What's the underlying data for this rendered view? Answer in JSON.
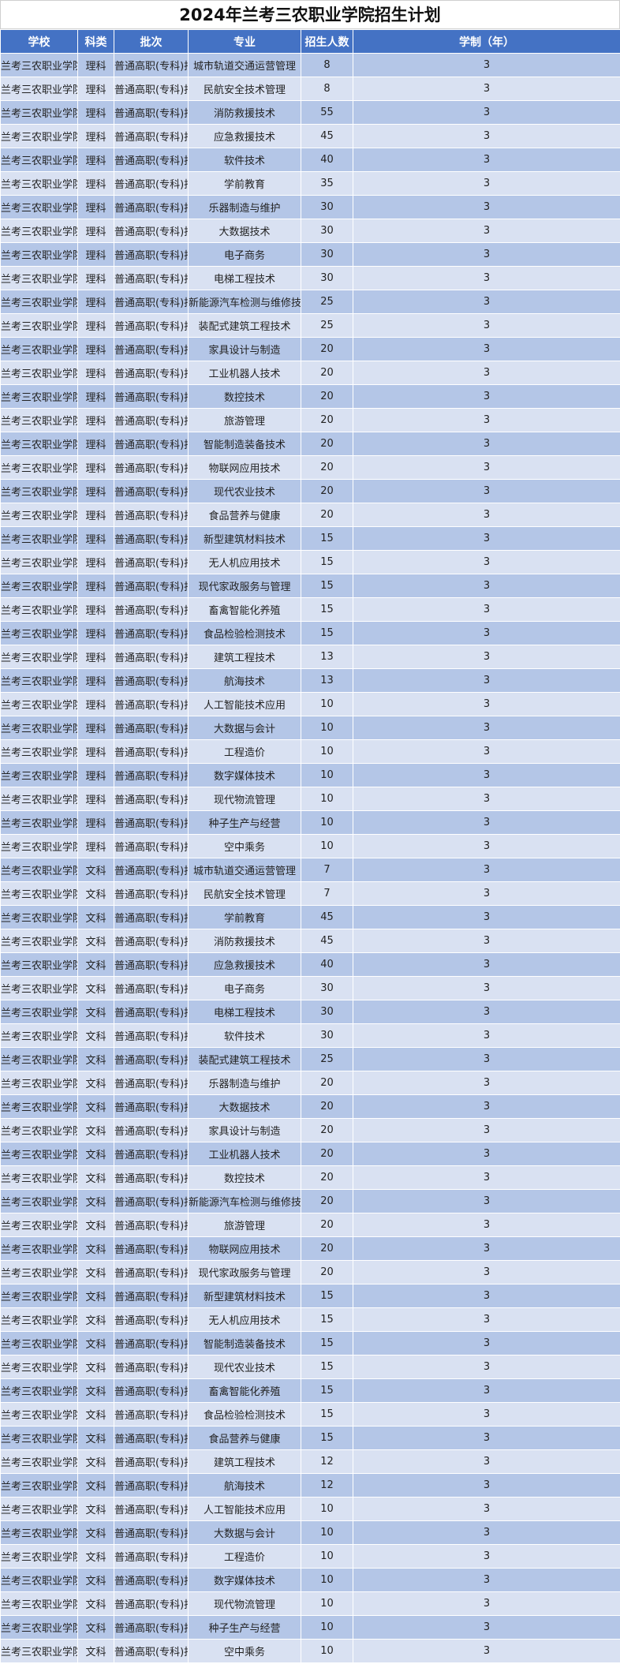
{
  "title": "2024年兰考三农职业学院招生计划",
  "colors": {
    "header_bg": "#4472C4",
    "row_odd": "#B4C6E7",
    "row_even": "#D9E1F2"
  },
  "columns": [
    "学校",
    "科类",
    "批次",
    "专业",
    "招生人数",
    "学制（年）"
  ],
  "rows": [
    [
      "兰考三农职业学院",
      "理科",
      "普通高职(专科)批",
      "城市轨道交通运营管理",
      "8",
      "3"
    ],
    [
      "兰考三农职业学院",
      "理科",
      "普通高职(专科)批",
      "民航安全技术管理",
      "8",
      "3"
    ],
    [
      "兰考三农职业学院",
      "理科",
      "普通高职(专科)批",
      "消防救援技术",
      "55",
      "3"
    ],
    [
      "兰考三农职业学院",
      "理科",
      "普通高职(专科)批",
      "应急救援技术",
      "45",
      "3"
    ],
    [
      "兰考三农职业学院",
      "理科",
      "普通高职(专科)批",
      "软件技术",
      "40",
      "3"
    ],
    [
      "兰考三农职业学院",
      "理科",
      "普通高职(专科)批",
      "学前教育",
      "35",
      "3"
    ],
    [
      "兰考三农职业学院",
      "理科",
      "普通高职(专科)批",
      "乐器制造与维护",
      "30",
      "3"
    ],
    [
      "兰考三农职业学院",
      "理科",
      "普通高职(专科)批",
      "大数据技术",
      "30",
      "3"
    ],
    [
      "兰考三农职业学院",
      "理科",
      "普通高职(专科)批",
      "电子商务",
      "30",
      "3"
    ],
    [
      "兰考三农职业学院",
      "理科",
      "普通高职(专科)批",
      "电梯工程技术",
      "30",
      "3"
    ],
    [
      "兰考三农职业学院",
      "理科",
      "普通高职(专科)批",
      "新能源汽车检测与维修技术",
      "25",
      "3"
    ],
    [
      "兰考三农职业学院",
      "理科",
      "普通高职(专科)批",
      "装配式建筑工程技术",
      "25",
      "3"
    ],
    [
      "兰考三农职业学院",
      "理科",
      "普通高职(专科)批",
      "家具设计与制造",
      "20",
      "3"
    ],
    [
      "兰考三农职业学院",
      "理科",
      "普通高职(专科)批",
      "工业机器人技术",
      "20",
      "3"
    ],
    [
      "兰考三农职业学院",
      "理科",
      "普通高职(专科)批",
      "数控技术",
      "20",
      "3"
    ],
    [
      "兰考三农职业学院",
      "理科",
      "普通高职(专科)批",
      "旅游管理",
      "20",
      "3"
    ],
    [
      "兰考三农职业学院",
      "理科",
      "普通高职(专科)批",
      "智能制造装备技术",
      "20",
      "3"
    ],
    [
      "兰考三农职业学院",
      "理科",
      "普通高职(专科)批",
      "物联网应用技术",
      "20",
      "3"
    ],
    [
      "兰考三农职业学院",
      "理科",
      "普通高职(专科)批",
      "现代农业技术",
      "20",
      "3"
    ],
    [
      "兰考三农职业学院",
      "理科",
      "普通高职(专科)批",
      "食品营养与健康",
      "20",
      "3"
    ],
    [
      "兰考三农职业学院",
      "理科",
      "普通高职(专科)批",
      "新型建筑材料技术",
      "15",
      "3"
    ],
    [
      "兰考三农职业学院",
      "理科",
      "普通高职(专科)批",
      "无人机应用技术",
      "15",
      "3"
    ],
    [
      "兰考三农职业学院",
      "理科",
      "普通高职(专科)批",
      "现代家政服务与管理",
      "15",
      "3"
    ],
    [
      "兰考三农职业学院",
      "理科",
      "普通高职(专科)批",
      "畜禽智能化养殖",
      "15",
      "3"
    ],
    [
      "兰考三农职业学院",
      "理科",
      "普通高职(专科)批",
      "食品检验检测技术",
      "15",
      "3"
    ],
    [
      "兰考三农职业学院",
      "理科",
      "普通高职(专科)批",
      "建筑工程技术",
      "13",
      "3"
    ],
    [
      "兰考三农职业学院",
      "理科",
      "普通高职(专科)批",
      "航海技术",
      "13",
      "3"
    ],
    [
      "兰考三农职业学院",
      "理科",
      "普通高职(专科)批",
      "人工智能技术应用",
      "10",
      "3"
    ],
    [
      "兰考三农职业学院",
      "理科",
      "普通高职(专科)批",
      "大数据与会计",
      "10",
      "3"
    ],
    [
      "兰考三农职业学院",
      "理科",
      "普通高职(专科)批",
      "工程造价",
      "10",
      "3"
    ],
    [
      "兰考三农职业学院",
      "理科",
      "普通高职(专科)批",
      "数字媒体技术",
      "10",
      "3"
    ],
    [
      "兰考三农职业学院",
      "理科",
      "普通高职(专科)批",
      "现代物流管理",
      "10",
      "3"
    ],
    [
      "兰考三农职业学院",
      "理科",
      "普通高职(专科)批",
      "种子生产与经营",
      "10",
      "3"
    ],
    [
      "兰考三农职业学院",
      "理科",
      "普通高职(专科)批",
      "空中乘务",
      "10",
      "3"
    ],
    [
      "兰考三农职业学院",
      "文科",
      "普通高职(专科)批",
      "城市轨道交通运营管理",
      "7",
      "3"
    ],
    [
      "兰考三农职业学院",
      "文科",
      "普通高职(专科)批",
      "民航安全技术管理",
      "7",
      "3"
    ],
    [
      "兰考三农职业学院",
      "文科",
      "普通高职(专科)批",
      "学前教育",
      "45",
      "3"
    ],
    [
      "兰考三农职业学院",
      "文科",
      "普通高职(专科)批",
      "消防救援技术",
      "45",
      "3"
    ],
    [
      "兰考三农职业学院",
      "文科",
      "普通高职(专科)批",
      "应急救援技术",
      "40",
      "3"
    ],
    [
      "兰考三农职业学院",
      "文科",
      "普通高职(专科)批",
      "电子商务",
      "30",
      "3"
    ],
    [
      "兰考三农职业学院",
      "文科",
      "普通高职(专科)批",
      "电梯工程技术",
      "30",
      "3"
    ],
    [
      "兰考三农职业学院",
      "文科",
      "普通高职(专科)批",
      "软件技术",
      "30",
      "3"
    ],
    [
      "兰考三农职业学院",
      "文科",
      "普通高职(专科)批",
      "装配式建筑工程技术",
      "25",
      "3"
    ],
    [
      "兰考三农职业学院",
      "文科",
      "普通高职(专科)批",
      "乐器制造与维护",
      "20",
      "3"
    ],
    [
      "兰考三农职业学院",
      "文科",
      "普通高职(专科)批",
      "大数据技术",
      "20",
      "3"
    ],
    [
      "兰考三农职业学院",
      "文科",
      "普通高职(专科)批",
      "家具设计与制造",
      "20",
      "3"
    ],
    [
      "兰考三农职业学院",
      "文科",
      "普通高职(专科)批",
      "工业机器人技术",
      "20",
      "3"
    ],
    [
      "兰考三农职业学院",
      "文科",
      "普通高职(专科)批",
      "数控技术",
      "20",
      "3"
    ],
    [
      "兰考三农职业学院",
      "文科",
      "普通高职(专科)批",
      "新能源汽车检测与维修技术",
      "20",
      "3"
    ],
    [
      "兰考三农职业学院",
      "文科",
      "普通高职(专科)批",
      "旅游管理",
      "20",
      "3"
    ],
    [
      "兰考三农职业学院",
      "文科",
      "普通高职(专科)批",
      "物联网应用技术",
      "20",
      "3"
    ],
    [
      "兰考三农职业学院",
      "文科",
      "普通高职(专科)批",
      "现代家政服务与管理",
      "20",
      "3"
    ],
    [
      "兰考三农职业学院",
      "文科",
      "普通高职(专科)批",
      "新型建筑材料技术",
      "15",
      "3"
    ],
    [
      "兰考三农职业学院",
      "文科",
      "普通高职(专科)批",
      "无人机应用技术",
      "15",
      "3"
    ],
    [
      "兰考三农职业学院",
      "文科",
      "普通高职(专科)批",
      "智能制造装备技术",
      "15",
      "3"
    ],
    [
      "兰考三农职业学院",
      "文科",
      "普通高职(专科)批",
      "现代农业技术",
      "15",
      "3"
    ],
    [
      "兰考三农职业学院",
      "文科",
      "普通高职(专科)批",
      "畜禽智能化养殖",
      "15",
      "3"
    ],
    [
      "兰考三农职业学院",
      "文科",
      "普通高职(专科)批",
      "食品检验检测技术",
      "15",
      "3"
    ],
    [
      "兰考三农职业学院",
      "文科",
      "普通高职(专科)批",
      "食品营养与健康",
      "15",
      "3"
    ],
    [
      "兰考三农职业学院",
      "文科",
      "普通高职(专科)批",
      "建筑工程技术",
      "12",
      "3"
    ],
    [
      "兰考三农职业学院",
      "文科",
      "普通高职(专科)批",
      "航海技术",
      "12",
      "3"
    ],
    [
      "兰考三农职业学院",
      "文科",
      "普通高职(专科)批",
      "人工智能技术应用",
      "10",
      "3"
    ],
    [
      "兰考三农职业学院",
      "文科",
      "普通高职(专科)批",
      "大数据与会计",
      "10",
      "3"
    ],
    [
      "兰考三农职业学院",
      "文科",
      "普通高职(专科)批",
      "工程造价",
      "10",
      "3"
    ],
    [
      "兰考三农职业学院",
      "文科",
      "普通高职(专科)批",
      "数字媒体技术",
      "10",
      "3"
    ],
    [
      "兰考三农职业学院",
      "文科",
      "普通高职(专科)批",
      "现代物流管理",
      "10",
      "3"
    ],
    [
      "兰考三农职业学院",
      "文科",
      "普通高职(专科)批",
      "种子生产与经营",
      "10",
      "3"
    ],
    [
      "兰考三农职业学院",
      "文科",
      "普通高职(专科)批",
      "空中乘务",
      "10",
      "3"
    ]
  ]
}
